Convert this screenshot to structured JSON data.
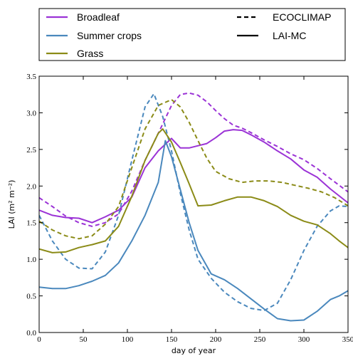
{
  "chart_data": {
    "type": "line",
    "xlabel": "day of year",
    "ylabel": "LAI (m² m⁻²)",
    "xlim": [
      0,
      350
    ],
    "ylim": [
      0,
      3.5
    ],
    "xticks": [
      0,
      50,
      100,
      150,
      200,
      250,
      300,
      350
    ],
    "yticks": [
      0.0,
      0.5,
      1.0,
      1.5,
      2.0,
      2.5,
      3.0,
      3.5
    ],
    "xtick_labels": [
      "0",
      "50",
      "100",
      "150",
      "200",
      "250",
      "300",
      "350"
    ],
    "ytick_labels": [
      "0.0",
      "0.5",
      "1.0",
      "1.5",
      "2.0",
      "2.5",
      "3.0",
      "3.5"
    ],
    "grid": false,
    "legend_placement": "above",
    "legend_land": [
      {
        "label": "Broadleaf",
        "color": "#9b33d6"
      },
      {
        "label": "Summer crops",
        "color": "#4a88bd"
      },
      {
        "label": "Grass",
        "color": "#8b8b17"
      }
    ],
    "legend_source": [
      {
        "label": "ECOCLIMAP",
        "style": "dashed"
      },
      {
        "label": "LAI-MC",
        "style": "solid"
      }
    ],
    "series": [
      {
        "name": "Broadleaf",
        "source": "LAI-MC",
        "style": "solid",
        "color": "#9b33d6",
        "x": [
          0,
          15,
          30,
          45,
          60,
          75,
          90,
          105,
          120,
          135,
          150,
          160,
          170,
          180,
          190,
          200,
          210,
          220,
          230,
          240,
          255,
          270,
          285,
          300,
          315,
          330,
          350
        ],
        "y": [
          1.67,
          1.6,
          1.57,
          1.56,
          1.5,
          1.58,
          1.67,
          1.85,
          2.25,
          2.48,
          2.65,
          2.52,
          2.52,
          2.55,
          2.58,
          2.66,
          2.75,
          2.77,
          2.76,
          2.7,
          2.6,
          2.48,
          2.37,
          2.22,
          2.12,
          1.96,
          1.77
        ]
      },
      {
        "name": "Broadleaf",
        "source": "ECOCLIMAP",
        "style": "dashed",
        "color": "#9b33d6",
        "x": [
          0,
          15,
          30,
          45,
          60,
          75,
          90,
          105,
          120,
          135,
          150,
          160,
          170,
          180,
          190,
          200,
          210,
          220,
          230,
          240,
          255,
          270,
          285,
          300,
          315,
          330,
          350
        ],
        "y": [
          1.84,
          1.72,
          1.59,
          1.5,
          1.45,
          1.5,
          1.62,
          1.93,
          2.35,
          2.72,
          3.1,
          3.25,
          3.27,
          3.24,
          3.15,
          3.03,
          2.92,
          2.83,
          2.79,
          2.73,
          2.63,
          2.54,
          2.44,
          2.36,
          2.24,
          2.1,
          1.92
        ]
      },
      {
        "name": "Summer crops",
        "source": "LAI-MC",
        "style": "solid",
        "color": "#4a88bd",
        "x": [
          0,
          15,
          30,
          45,
          60,
          75,
          90,
          105,
          120,
          135,
          143,
          150,
          160,
          170,
          180,
          195,
          210,
          225,
          240,
          255,
          270,
          285,
          300,
          315,
          330,
          340,
          350
        ],
        "y": [
          0.62,
          0.6,
          0.6,
          0.64,
          0.7,
          0.78,
          0.95,
          1.25,
          1.6,
          2.05,
          2.62,
          2.4,
          1.95,
          1.5,
          1.12,
          0.8,
          0.72,
          0.6,
          0.46,
          0.32,
          0.19,
          0.16,
          0.17,
          0.29,
          0.45,
          0.5,
          0.57
        ]
      },
      {
        "name": "Summer crops",
        "source": "ECOCLIMAP",
        "style": "dashed",
        "color": "#4a88bd",
        "x": [
          0,
          15,
          30,
          45,
          60,
          75,
          90,
          105,
          120,
          130,
          140,
          150,
          160,
          170,
          180,
          195,
          210,
          225,
          240,
          255,
          270,
          285,
          300,
          315,
          330,
          340,
          350
        ],
        "y": [
          1.6,
          1.25,
          1.0,
          0.88,
          0.87,
          1.1,
          1.6,
          2.35,
          3.08,
          3.26,
          2.95,
          2.48,
          1.9,
          1.4,
          1.0,
          0.74,
          0.55,
          0.42,
          0.33,
          0.3,
          0.4,
          0.72,
          1.12,
          1.45,
          1.66,
          1.73,
          1.72
        ]
      },
      {
        "name": "Grass",
        "source": "LAI-MC",
        "style": "solid",
        "color": "#8b8b17",
        "x": [
          0,
          15,
          30,
          45,
          60,
          75,
          90,
          105,
          120,
          135,
          140,
          150,
          160,
          170,
          180,
          195,
          210,
          225,
          240,
          255,
          270,
          285,
          300,
          315,
          330,
          340,
          350
        ],
        "y": [
          1.14,
          1.09,
          1.1,
          1.16,
          1.2,
          1.25,
          1.45,
          1.86,
          2.35,
          2.72,
          2.78,
          2.6,
          2.32,
          2.03,
          1.73,
          1.74,
          1.8,
          1.85,
          1.85,
          1.8,
          1.72,
          1.6,
          1.52,
          1.47,
          1.35,
          1.25,
          1.16
        ]
      },
      {
        "name": "Grass",
        "source": "ECOCLIMAP",
        "style": "dashed",
        "color": "#8b8b17",
        "x": [
          0,
          15,
          30,
          45,
          60,
          75,
          90,
          105,
          120,
          135,
          150,
          160,
          170,
          180,
          190,
          200,
          215,
          230,
          245,
          260,
          275,
          290,
          305,
          320,
          335,
          350
        ],
        "y": [
          1.52,
          1.4,
          1.32,
          1.28,
          1.32,
          1.48,
          1.72,
          2.25,
          2.78,
          3.1,
          3.18,
          3.08,
          2.87,
          2.62,
          2.38,
          2.2,
          2.1,
          2.05,
          2.07,
          2.07,
          2.05,
          2.01,
          1.97,
          1.92,
          1.84,
          1.73
        ]
      }
    ]
  }
}
